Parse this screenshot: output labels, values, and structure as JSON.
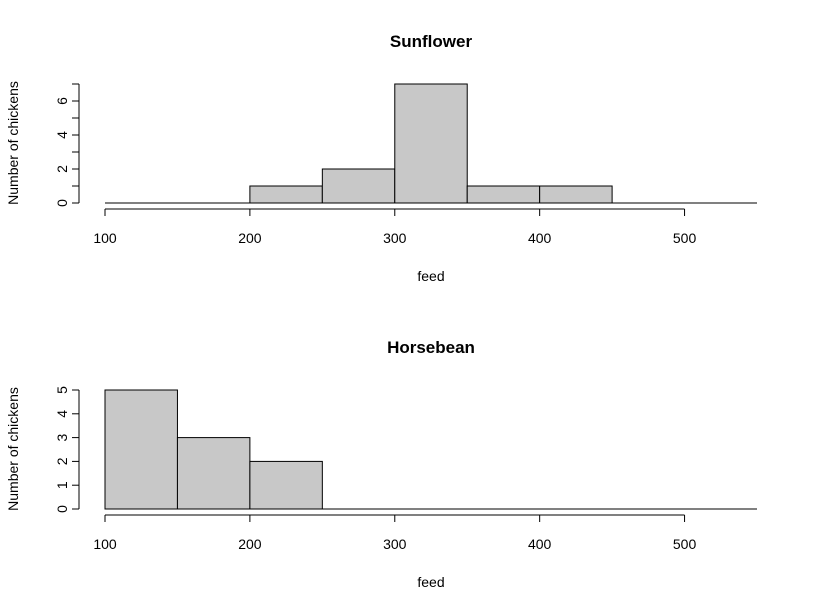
{
  "chart_data": [
    {
      "type": "bar",
      "title": "Sunflower",
      "xlabel": "feed",
      "ylabel": "Number of chickens",
      "bins": [
        {
          "start": 100,
          "end": 150,
          "count": 0
        },
        {
          "start": 150,
          "end": 200,
          "count": 0
        },
        {
          "start": 200,
          "end": 250,
          "count": 1
        },
        {
          "start": 250,
          "end": 300,
          "count": 2
        },
        {
          "start": 300,
          "end": 350,
          "count": 7
        },
        {
          "start": 350,
          "end": 400,
          "count": 1
        },
        {
          "start": 400,
          "end": 450,
          "count": 1
        },
        {
          "start": 450,
          "end": 500,
          "count": 0
        },
        {
          "start": 500,
          "end": 550,
          "count": 0
        }
      ],
      "xlim": [
        100,
        550
      ],
      "ylim": [
        0,
        7
      ],
      "xticks": [
        100,
        200,
        300,
        400,
        500
      ],
      "yticks": [
        0,
        1,
        2,
        3,
        4,
        5,
        6,
        7
      ],
      "ytick_labels": [
        "0",
        "",
        "2",
        "",
        "4",
        "",
        "6",
        ""
      ]
    },
    {
      "type": "bar",
      "title": "Horsebean",
      "xlabel": "feed",
      "ylabel": "Number of chickens",
      "bins": [
        {
          "start": 100,
          "end": 150,
          "count": 5
        },
        {
          "start": 150,
          "end": 200,
          "count": 3
        },
        {
          "start": 200,
          "end": 250,
          "count": 2
        },
        {
          "start": 250,
          "end": 300,
          "count": 0
        },
        {
          "start": 300,
          "end": 350,
          "count": 0
        },
        {
          "start": 350,
          "end": 400,
          "count": 0
        },
        {
          "start": 400,
          "end": 450,
          "count": 0
        },
        {
          "start": 450,
          "end": 500,
          "count": 0
        },
        {
          "start": 500,
          "end": 550,
          "count": 0
        }
      ],
      "xlim": [
        100,
        550
      ],
      "ylim": [
        0,
        5
      ],
      "xticks": [
        100,
        200,
        300,
        400,
        500
      ],
      "yticks": [
        0,
        1,
        2,
        3,
        4,
        5
      ],
      "ytick_labels": [
        "0",
        "1",
        "2",
        "3",
        "4",
        "5"
      ]
    }
  ]
}
